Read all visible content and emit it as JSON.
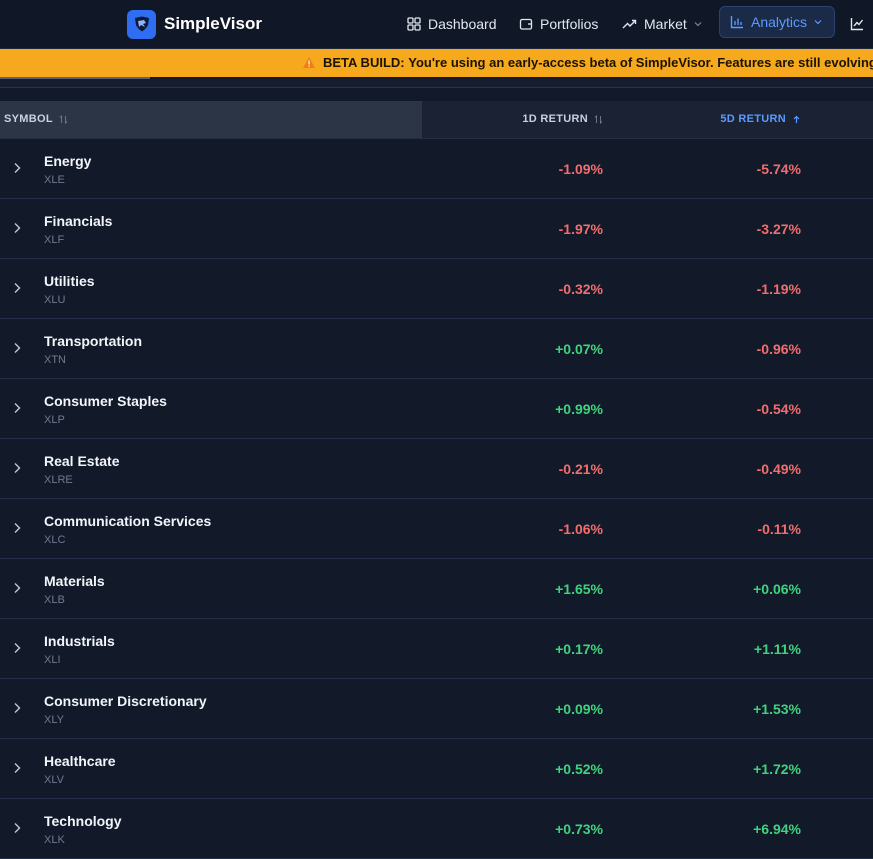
{
  "app": {
    "name": "SimpleVisor",
    "logo_icon": "shield-logo-icon",
    "accent_color": "#2f6df2"
  },
  "nav": {
    "dashboard": "Dashboard",
    "portfolios": "Portfolios",
    "market": "Market",
    "analytics": "Analytics"
  },
  "banner": {
    "prefix": "BETA BUILD:",
    "message": "You're using an early-access beta of SimpleVisor. Features are still evolving",
    "color": "#f7a91d"
  },
  "table": {
    "headers": {
      "symbol": "SYMBOL",
      "return_1d": "1D RETURN",
      "return_5d": "5D RETURN"
    },
    "sort_column": "5D RETURN",
    "sort_direction": "ascending",
    "rows": [
      {
        "name": "Energy",
        "ticker": "XLE",
        "r1d": "-1.09%",
        "r5d": "-5.74%"
      },
      {
        "name": "Financials",
        "ticker": "XLF",
        "r1d": "-1.97%",
        "r5d": "-3.27%"
      },
      {
        "name": "Utilities",
        "ticker": "XLU",
        "r1d": "-0.32%",
        "r5d": "-1.19%"
      },
      {
        "name": "Transportation",
        "ticker": "XTN",
        "r1d": "+0.07%",
        "r5d": "-0.96%"
      },
      {
        "name": "Consumer Staples",
        "ticker": "XLP",
        "r1d": "+0.99%",
        "r5d": "-0.54%"
      },
      {
        "name": "Real Estate",
        "ticker": "XLRE",
        "r1d": "-0.21%",
        "r5d": "-0.49%"
      },
      {
        "name": "Communication Services",
        "ticker": "XLC",
        "r1d": "-1.06%",
        "r5d": "-0.11%"
      },
      {
        "name": "Materials",
        "ticker": "XLB",
        "r1d": "+1.65%",
        "r5d": "+0.06%"
      },
      {
        "name": "Industrials",
        "ticker": "XLI",
        "r1d": "+0.17%",
        "r5d": "+1.11%"
      },
      {
        "name": "Consumer Discretionary",
        "ticker": "XLY",
        "r1d": "+0.09%",
        "r5d": "+1.53%"
      },
      {
        "name": "Healthcare",
        "ticker": "XLV",
        "r1d": "+0.52%",
        "r5d": "+1.72%"
      },
      {
        "name": "Technology",
        "ticker": "XLK",
        "r1d": "+0.73%",
        "r5d": "+6.94%"
      }
    ]
  },
  "colors": {
    "positive": "#3ed47c",
    "negative": "#f26d6d",
    "active_nav": "#5b9bff"
  }
}
